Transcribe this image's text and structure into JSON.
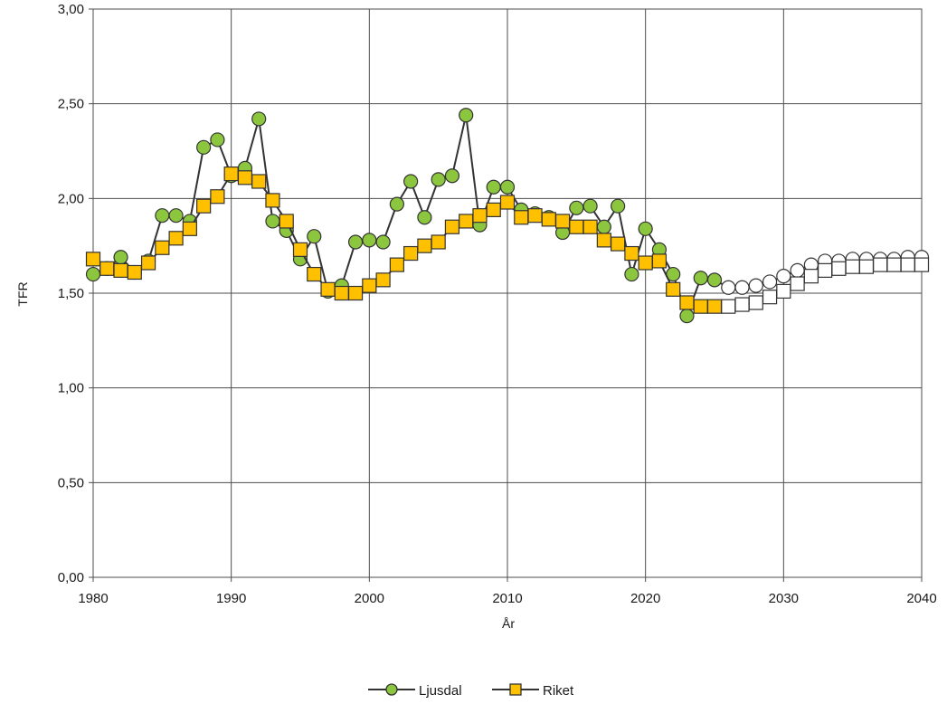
{
  "chart_data": {
    "type": "line",
    "title": "",
    "xlabel": "År",
    "ylabel": "TFR",
    "xlim": [
      1980,
      2040
    ],
    "ylim": [
      0,
      3
    ],
    "x_ticks": [
      1980,
      1990,
      2000,
      2010,
      2020,
      2030,
      2040
    ],
    "x_tick_labels": [
      "1980",
      "1990",
      "2000",
      "2010",
      "2020",
      "2030",
      "2040"
    ],
    "y_ticks": [
      0,
      0.5,
      1,
      1.5,
      2,
      2.5,
      3
    ],
    "y_tick_labels": [
      "0,00",
      "0,50",
      "1,00",
      "1,50",
      "2,00",
      "2,50",
      "3,00"
    ],
    "grid": true,
    "legend_position": "bottom-center",
    "line_color": "#333333",
    "projection_start_year": 2026,
    "series": [
      {
        "name": "Ljusdal",
        "marker": "circle",
        "color": "#8cc63f",
        "projection_color": "#ffffff",
        "x": [
          1980,
          1981,
          1982,
          1983,
          1984,
          1985,
          1986,
          1987,
          1988,
          1989,
          1990,
          1991,
          1992,
          1993,
          1994,
          1995,
          1996,
          1997,
          1998,
          1999,
          2000,
          2001,
          2002,
          2003,
          2004,
          2005,
          2006,
          2007,
          2008,
          2009,
          2010,
          2011,
          2012,
          2013,
          2014,
          2015,
          2016,
          2017,
          2018,
          2019,
          2020,
          2021,
          2022,
          2023,
          2024,
          2025,
          2026,
          2027,
          2028,
          2029,
          2030,
          2031,
          2032,
          2033,
          2034,
          2035,
          2036,
          2037,
          2038,
          2039,
          2040
        ],
        "values": [
          1.6,
          1.63,
          1.69,
          1.61,
          1.67,
          1.91,
          1.91,
          1.88,
          2.27,
          2.31,
          2.12,
          2.16,
          2.42,
          1.88,
          1.83,
          1.68,
          1.8,
          1.51,
          1.54,
          1.77,
          1.78,
          1.77,
          1.97,
          2.09,
          1.9,
          2.1,
          2.12,
          2.44,
          1.86,
          2.06,
          2.06,
          1.94,
          1.92,
          1.9,
          1.82,
          1.95,
          1.96,
          1.85,
          1.96,
          1.6,
          1.84,
          1.73,
          1.6,
          1.38,
          1.58,
          1.57,
          1.53,
          1.53,
          1.54,
          1.56,
          1.59,
          1.62,
          1.65,
          1.67,
          1.67,
          1.68,
          1.68,
          1.68,
          1.68,
          1.69,
          1.69
        ]
      },
      {
        "name": "Riket",
        "marker": "square",
        "color": "#ffc000",
        "projection_color": "#ffffff",
        "x": [
          1980,
          1981,
          1982,
          1983,
          1984,
          1985,
          1986,
          1987,
          1988,
          1989,
          1990,
          1991,
          1992,
          1993,
          1994,
          1995,
          1996,
          1997,
          1998,
          1999,
          2000,
          2001,
          2002,
          2003,
          2004,
          2005,
          2006,
          2007,
          2008,
          2009,
          2010,
          2011,
          2012,
          2013,
          2014,
          2015,
          2016,
          2017,
          2018,
          2019,
          2020,
          2021,
          2022,
          2023,
          2024,
          2025,
          2026,
          2027,
          2028,
          2029,
          2030,
          2031,
          2032,
          2033,
          2034,
          2035,
          2036,
          2037,
          2038,
          2039,
          2040
        ],
        "values": [
          1.68,
          1.63,
          1.62,
          1.61,
          1.66,
          1.74,
          1.79,
          1.84,
          1.96,
          2.01,
          2.13,
          2.11,
          2.09,
          1.99,
          1.88,
          1.73,
          1.6,
          1.52,
          1.5,
          1.5,
          1.54,
          1.57,
          1.65,
          1.71,
          1.75,
          1.77,
          1.85,
          1.88,
          1.91,
          1.94,
          1.98,
          1.9,
          1.91,
          1.89,
          1.88,
          1.85,
          1.85,
          1.78,
          1.76,
          1.71,
          1.66,
          1.67,
          1.52,
          1.45,
          1.43,
          1.43,
          1.43,
          1.44,
          1.45,
          1.48,
          1.51,
          1.55,
          1.59,
          1.62,
          1.63,
          1.64,
          1.64,
          1.65,
          1.65,
          1.65,
          1.65
        ]
      }
    ]
  }
}
